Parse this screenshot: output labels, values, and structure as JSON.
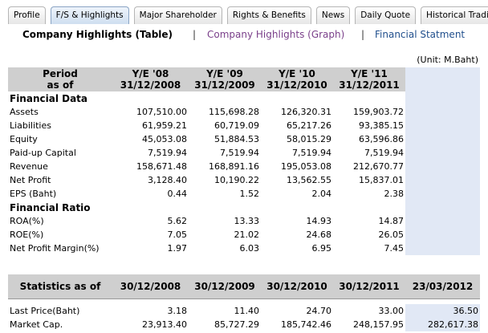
{
  "tabs": [
    "Profile",
    "F/S & Highlights",
    "Major Shareholder",
    "Rights & Benefits",
    "News",
    "Daily Quote",
    "Historical Trading"
  ],
  "active_tab": 1,
  "subnav": [
    "Company Highlights (Table)",
    "Company Highlights (Graph)",
    "Financial Statment"
  ],
  "unit": "(Unit: M.Baht)",
  "table": {
    "header": [
      [
        "Period",
        "as of"
      ],
      [
        "Y/E '08",
        "31/12/2008"
      ],
      [
        "Y/E '09",
        "31/12/2009"
      ],
      [
        "Y/E '10",
        "31/12/2010"
      ],
      [
        "Y/E '11",
        "31/12/2011"
      ]
    ],
    "sections": [
      {
        "title": "Financial Data",
        "rows": [
          [
            "Assets",
            "107,510.00",
            "115,698.28",
            "126,320.31",
            "159,903.72"
          ],
          [
            "Liabilities",
            "61,959.21",
            "60,719.09",
            "65,217.26",
            "93,385.15"
          ],
          [
            "Equity",
            "45,053.08",
            "51,884.53",
            "58,015.29",
            "63,596.86"
          ],
          [
            "Paid-up Capital",
            "7,519.94",
            "7,519.94",
            "7,519.94",
            "7,519.94"
          ],
          [
            "Revenue",
            "158,671.48",
            "168,891.16",
            "195,053.08",
            "212,670.77"
          ],
          [
            "Net Profit",
            "3,128.40",
            "10,190.22",
            "13,562.55",
            "15,837.01"
          ],
          [
            "EPS (Baht)",
            "0.44",
            "1.52",
            "2.04",
            "2.38"
          ]
        ]
      },
      {
        "title": "Financial Ratio",
        "rows": [
          [
            "ROA(%)",
            "5.62",
            "13.33",
            "14.93",
            "14.87"
          ],
          [
            "ROE(%)",
            "7.05",
            "21.02",
            "24.68",
            "26.05"
          ],
          [
            "Net Profit Margin(%)",
            "1.97",
            "6.03",
            "6.95",
            "7.45"
          ]
        ]
      }
    ]
  },
  "statistics": {
    "header": [
      "Statistics as of",
      "30/12/2008",
      "30/12/2009",
      "30/12/2010",
      "30/12/2011",
      "23/03/2012"
    ],
    "rows": [
      [
        "Last Price(Baht)",
        "3.18",
        "11.40",
        "24.70",
        "33.00",
        "36.50"
      ],
      [
        "Market Cap.",
        "23,913.40",
        "85,727.29",
        "185,742.46",
        "248,157.95",
        "282,617.38"
      ]
    ]
  }
}
